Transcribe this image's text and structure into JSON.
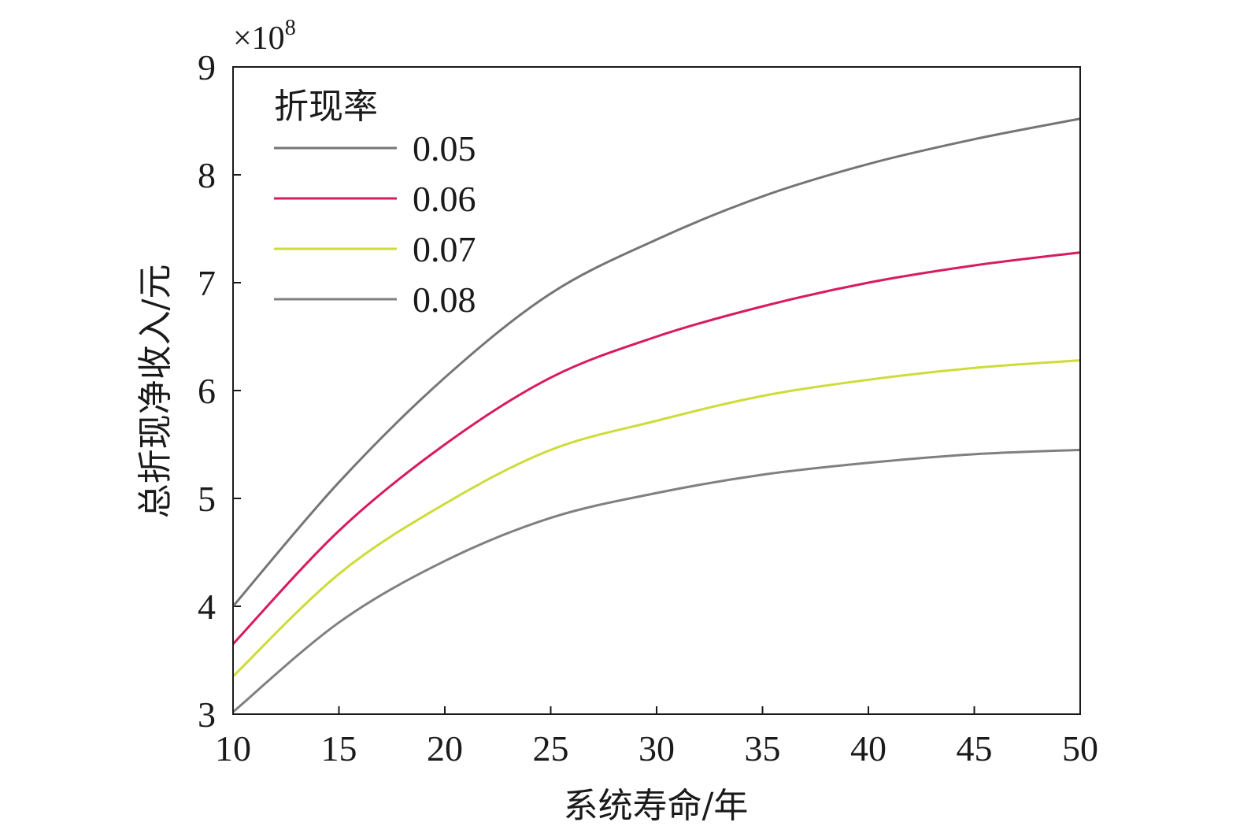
{
  "chart_data": {
    "type": "line",
    "title": "",
    "xlabel": "系统寿命/年",
    "ylabel": "总折现净收入/元",
    "y_multiplier": "×10",
    "y_multiplier_exp": "8",
    "xlim": [
      10,
      50
    ],
    "ylim": [
      3,
      9
    ],
    "x_ticks": [
      "10",
      "15",
      "20",
      "25",
      "30",
      "35",
      "40",
      "45",
      "50"
    ],
    "y_ticks": [
      "3",
      "4",
      "5",
      "6",
      "7",
      "8",
      "9"
    ],
    "grid": false,
    "legend": {
      "title": "折现率",
      "placement": "top-left"
    },
    "x": [
      10,
      15,
      20,
      25,
      30,
      35,
      40,
      45,
      50
    ],
    "series": [
      {
        "name": "0.05",
        "color": "#757575",
        "values": [
          4.0,
          5.15,
          6.12,
          6.9,
          7.4,
          7.8,
          8.1,
          8.33,
          8.52
        ]
      },
      {
        "name": "0.06",
        "color": "#d81b60",
        "values": [
          3.65,
          4.7,
          5.5,
          6.12,
          6.5,
          6.78,
          7.0,
          7.16,
          7.28
        ]
      },
      {
        "name": "0.07",
        "color": "#cddc39",
        "values": [
          3.35,
          4.3,
          4.95,
          5.45,
          5.72,
          5.95,
          6.1,
          6.21,
          6.28
        ]
      },
      {
        "name": "0.08",
        "color": "#808080",
        "values": [
          3.02,
          3.85,
          4.42,
          4.82,
          5.05,
          5.22,
          5.33,
          5.41,
          5.45
        ]
      }
    ]
  }
}
